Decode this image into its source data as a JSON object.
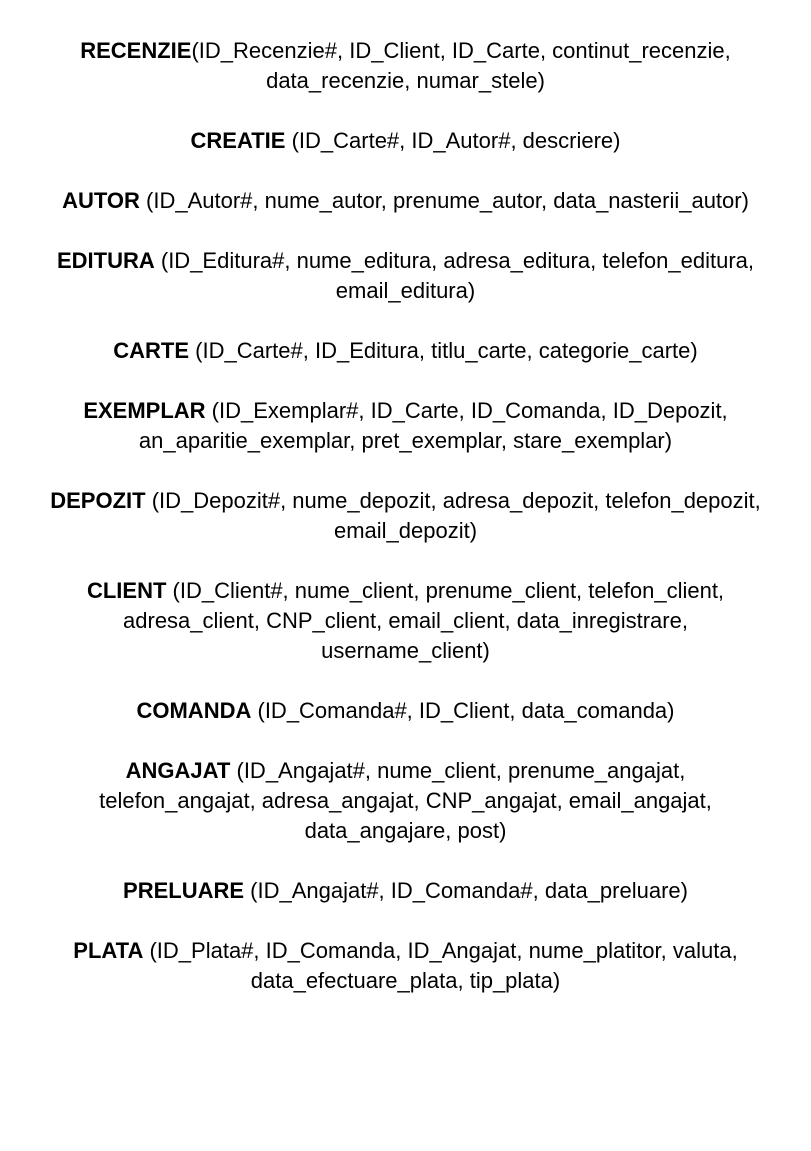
{
  "relations": [
    {
      "name": "RECENZIE",
      "attrs": "(ID_Recenzie#, ID_Client, ID_Carte, continut_recenzie,\ndata_recenzie, numar_stele)"
    },
    {
      "name": "CREATIE",
      "attrs": " (ID_Carte#, ID_Autor#, descriere)"
    },
    {
      "name": "AUTOR",
      "attrs": " (ID_Autor#, nume_autor, prenume_autor, data_nasterii_autor)"
    },
    {
      "name": "EDITURA",
      "attrs": " (ID_Editura#, nume_editura, adresa_editura, telefon_editura,\nemail_editura)"
    },
    {
      "name": "CARTE",
      "attrs": " (ID_Carte#, ID_Editura, titlu_carte, categorie_carte)"
    },
    {
      "name": "EXEMPLAR",
      "attrs": " (ID_Exemplar#, ID_Carte, ID_Comanda, ID_Depozit,\nan_aparitie_exemplar, pret_exemplar, stare_exemplar)"
    },
    {
      "name": "DEPOZIT",
      "attrs": " (ID_Depozit#, nume_depozit, adresa_depozit, telefon_depozit,\nemail_depozit)"
    },
    {
      "name": "CLIENT",
      "attrs": " (ID_Client#, nume_client, prenume_client, telefon_client,\nadresa_client, CNP_client, email_client, data_inregistrare,\nusername_client)"
    },
    {
      "name": "COMANDA",
      "attrs": " (ID_Comanda#, ID_Client, data_comanda)"
    },
    {
      "name": "ANGAJAT",
      "attrs": " (ID_Angajat#, nume_client, prenume_angajat,\ntelefon_angajat, adresa_angajat, CNP_angajat, email_angajat,\ndata_angajare, post)"
    },
    {
      "name": "PRELUARE",
      "attrs": " (ID_Angajat#, ID_Comanda#, data_preluare)"
    },
    {
      "name": "PLATA",
      "attrs": " (ID_Plata#, ID_Comanda, ID_Angajat, nume_platitor, valuta,\ndata_efectuare_plata, tip_plata)"
    }
  ]
}
